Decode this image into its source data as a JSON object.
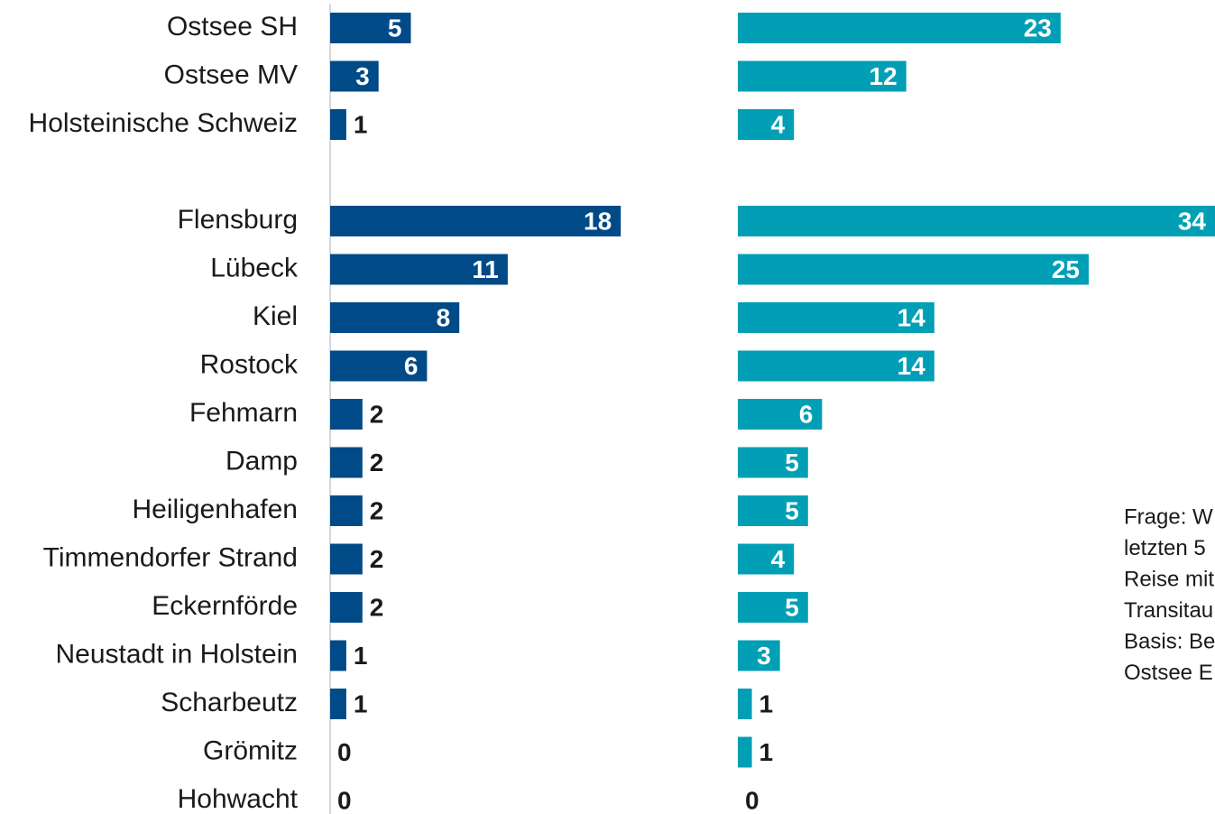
{
  "chart_data": [
    {
      "type": "bar",
      "orientation": "horizontal",
      "color": "#004a87",
      "xlim": [
        0,
        20
      ],
      "categories": [
        "Ostsee SH",
        "Ostsee MV",
        "Holsteinische Schweiz",
        null,
        "Flensburg",
        "Lübeck",
        "Kiel",
        "Rostock",
        "Fehmarn",
        "Damp",
        "Heiligenhafen",
        "Timmendorfer Strand",
        "Eckernförde",
        "Neustadt in Holstein",
        "Scharbeutz",
        "Grömitz",
        "Hohwacht"
      ],
      "values": [
        5,
        3,
        1,
        null,
        18,
        11,
        8,
        6,
        2,
        2,
        2,
        2,
        2,
        1,
        1,
        0,
        0
      ]
    },
    {
      "type": "bar",
      "orientation": "horizontal",
      "color": "#009fb5",
      "xlim": [
        0,
        34
      ],
      "values": [
        23,
        12,
        4,
        null,
        34,
        25,
        14,
        14,
        6,
        5,
        5,
        4,
        5,
        3,
        1,
        1,
        0
      ]
    }
  ],
  "note_lines": [
    "Frage: W",
    "letzten 5",
    "Reise mit",
    "Transitau",
    "Basis: Be",
    "Ostsee E"
  ]
}
